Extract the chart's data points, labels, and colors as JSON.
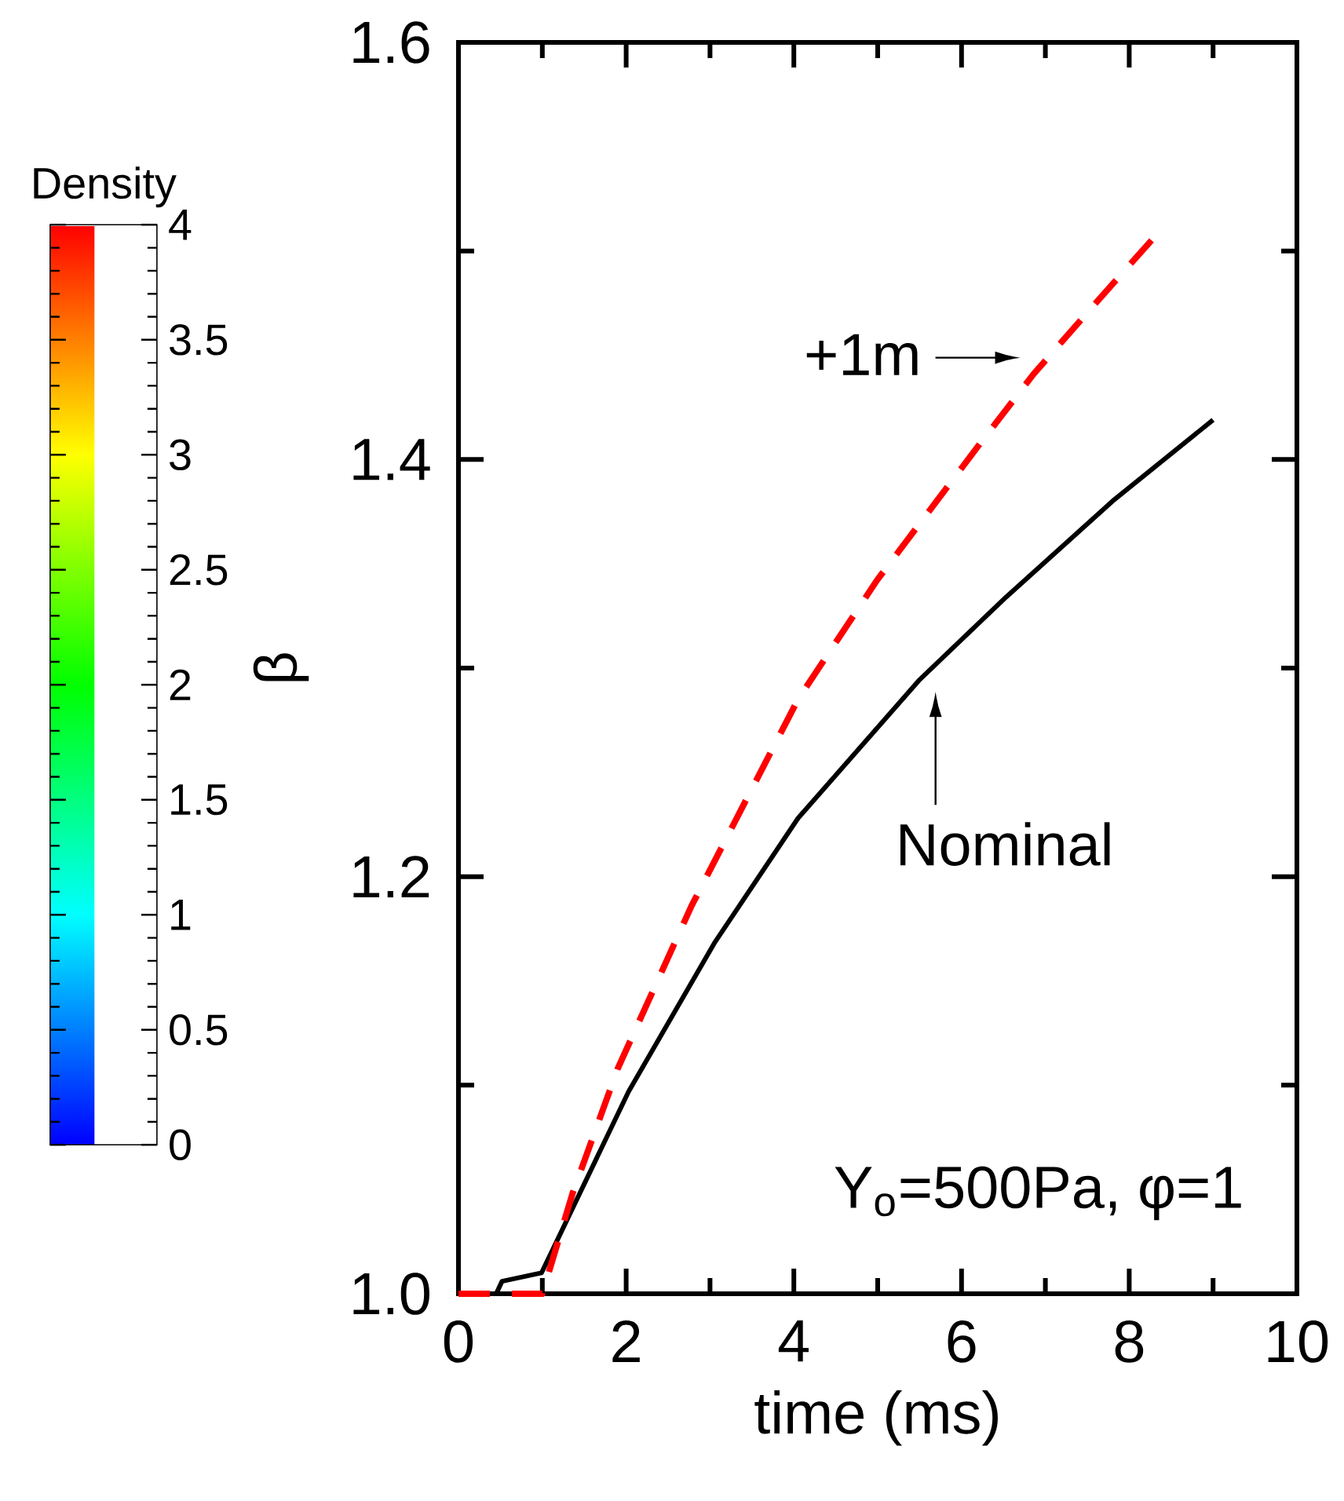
{
  "chart_data": {
    "type": "line",
    "xlabel": "time (ms)",
    "ylabel": "β",
    "clabel": "Density",
    "xlim": [
      0,
      10
    ],
    "ylim": [
      1.0,
      1.6
    ],
    "xticks": [
      0,
      2,
      4,
      6,
      8,
      10
    ],
    "yticks": [
      {
        "value": 1.0,
        "label": "1.0"
      },
      1.2,
      1.4,
      1.6
    ],
    "clim": [
      0,
      4
    ],
    "cticks": [
      0,
      0.5,
      1,
      1.5,
      2,
      2.5,
      3,
      3.5,
      4
    ],
    "series": [
      {
        "color": "#000000",
        "line_style": "solid",
        "x": [
          0.45,
          0.52,
          0.99,
          1.17,
          2.03,
          3.05,
          4.05,
          5.49,
          6.53,
          7.8,
          9.0
        ],
        "values": [
          1.0,
          1.006,
          1.01,
          1.025,
          1.097,
          1.168,
          1.228,
          1.294,
          1.334,
          1.38,
          1.419
        ]
      },
      {
        "color": "#ff0000",
        "line_style": "dashed",
        "x": [
          0,
          1.0,
          1.36,
          1.9,
          2.78,
          3.28,
          4.05,
          4.99,
          6.19,
          6.86,
          7.6,
          8.33
        ],
        "values": [
          1.0,
          1.0,
          1.048,
          1.108,
          1.186,
          1.225,
          1.285,
          1.342,
          1.406,
          1.441,
          1.475,
          1.508
        ]
      }
    ],
    "annotations": [
      "+1m",
      "Nominal",
      "Y$_{o}$=500Pa, φ=1"
    ]
  }
}
